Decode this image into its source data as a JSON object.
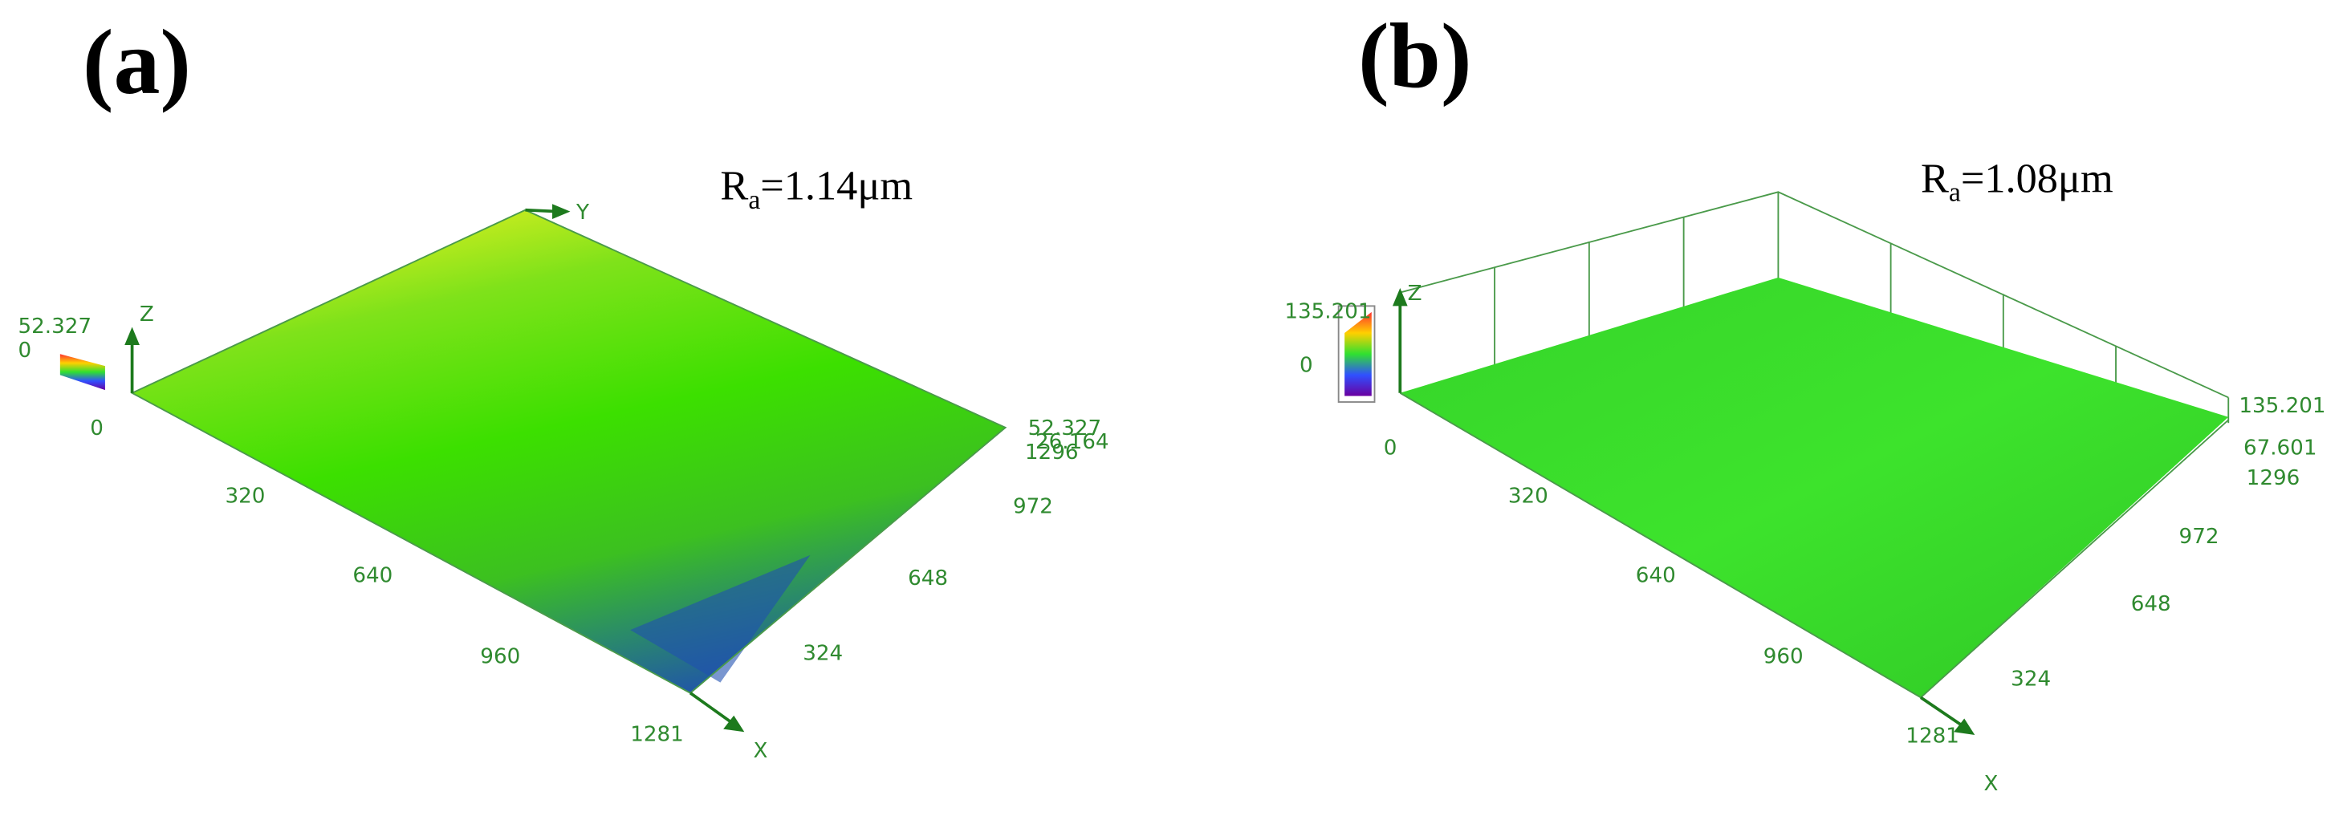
{
  "panels": [
    {
      "label": "(a)",
      "roughness": {
        "symbol": "R",
        "subscript": "a",
        "value": "=1.14μm"
      },
      "color_scale": {
        "max": "52.327",
        "min": "0"
      },
      "axes": {
        "z": "Z",
        "y": "Y",
        "x": "X"
      },
      "x_ticks": [
        "0",
        "320",
        "640",
        "960",
        "1281"
      ],
      "y_ticks": [
        "324",
        "648",
        "972",
        "1296"
      ],
      "z_ticks": [
        "52.327",
        "26.164"
      ]
    },
    {
      "label": "(b)",
      "roughness": {
        "symbol": "R",
        "subscript": "a",
        "value": "=1.08μm"
      },
      "color_scale": {
        "max": "135.201",
        "min": "0"
      },
      "axes": {
        "z": "Z",
        "x": "X"
      },
      "x_ticks": [
        "0",
        "320",
        "640",
        "960",
        "1281"
      ],
      "y_ticks": [
        "324",
        "648",
        "972",
        "1296"
      ],
      "z_ticks": [
        "135.201",
        "67.601"
      ]
    }
  ]
}
